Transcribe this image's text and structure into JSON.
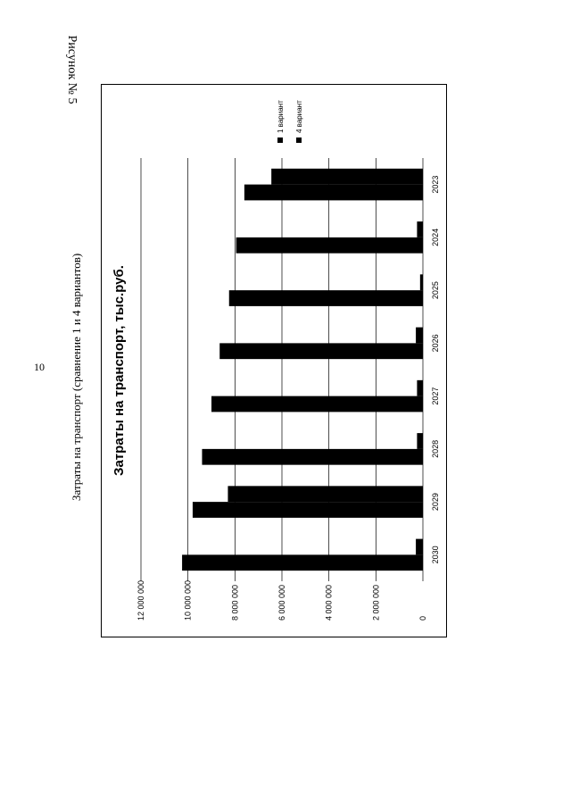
{
  "page": {
    "page_number": "10",
    "figure_label": "Рисунок № 5",
    "caption": "Затраты на транспорт (сравнение 1 и 4 вариантов)"
  },
  "chart_data": {
    "type": "bar",
    "orientation": "vertical",
    "rotated_on_page": "90deg counter-clockwise",
    "title": "Затраты на транспорт, тыс.руб.",
    "xlabel": "",
    "ylabel": "",
    "categories": [
      "2023",
      "2024",
      "2025",
      "2026",
      "2027",
      "2028",
      "2029",
      "2030"
    ],
    "series": [
      {
        "name": "1 вариант",
        "values": [
          6450000,
          250000,
          120000,
          300000,
          250000,
          250000,
          8300000,
          300000
        ]
      },
      {
        "name": "4 вариант",
        "values": [
          7600000,
          7950000,
          8250000,
          8650000,
          9000000,
          9400000,
          9800000,
          10250000
        ]
      }
    ],
    "yticks": [
      "0",
      "2 000 000",
      "4 000 000",
      "6 000 000",
      "8 000 000",
      "10 000 000",
      "12 000 000"
    ],
    "ylim": [
      0,
      12000000
    ],
    "grid": true,
    "legend": "top-right",
    "colors": {
      "series1": "#000000",
      "series2": "#000000",
      "grid": "#000000"
    }
  }
}
